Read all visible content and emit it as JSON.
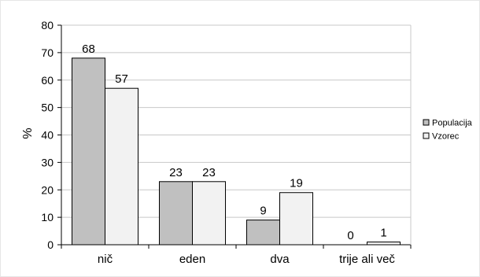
{
  "chart_data": {
    "type": "bar",
    "title": "",
    "xlabel": "",
    "ylabel": "%",
    "ylim": [
      0,
      80
    ],
    "yticks": [
      0,
      10,
      20,
      30,
      40,
      50,
      60,
      70,
      80
    ],
    "grid": true,
    "legend_position": "right",
    "categories": [
      "nič",
      "eden",
      "dva",
      "trije ali več"
    ],
    "series": [
      {
        "name": "Populacija",
        "values": [
          68,
          23,
          9,
          0
        ],
        "color": "#c0c0c0"
      },
      {
        "name": "Vzorec",
        "values": [
          57,
          23,
          19,
          1
        ],
        "color": "#f2f2f2"
      }
    ],
    "data_labels": true
  }
}
